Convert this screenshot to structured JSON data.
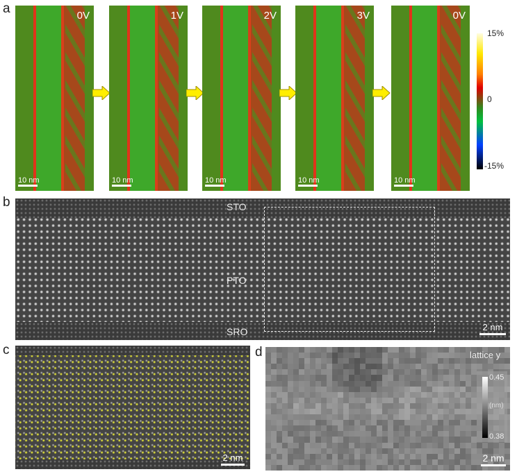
{
  "panels": {
    "a": {
      "label": "a",
      "frames": [
        {
          "voltage": "0V",
          "scale": "10 nm"
        },
        {
          "voltage": "1V",
          "scale": "10 nm"
        },
        {
          "voltage": "2V",
          "scale": "10 nm"
        },
        {
          "voltage": "3V",
          "scale": "10 nm"
        },
        {
          "voltage": "0V",
          "scale": "10 nm"
        }
      ],
      "colorbar": {
        "max": "15%",
        "mid": "0",
        "min": "-15%",
        "colors": [
          "#fffde0",
          "#ffe800",
          "#ff8000",
          "#e00000",
          "#2e8b1e",
          "#00c040",
          "#0040ff",
          "#000000"
        ]
      },
      "arrow_color": "#ffee00"
    },
    "b": {
      "label": "b",
      "layers": {
        "top": "STO",
        "middle": "PTO",
        "bottom": "SRO"
      },
      "scale": "2 nm"
    },
    "c": {
      "label": "c",
      "scale": "2 nm",
      "vector_color": "#e0e040"
    },
    "d": {
      "label": "d",
      "title": "lattice y",
      "colorbar": {
        "max": "0.45",
        "unit": "(nm)",
        "min": "0.38"
      },
      "scale": "2 nm"
    }
  }
}
